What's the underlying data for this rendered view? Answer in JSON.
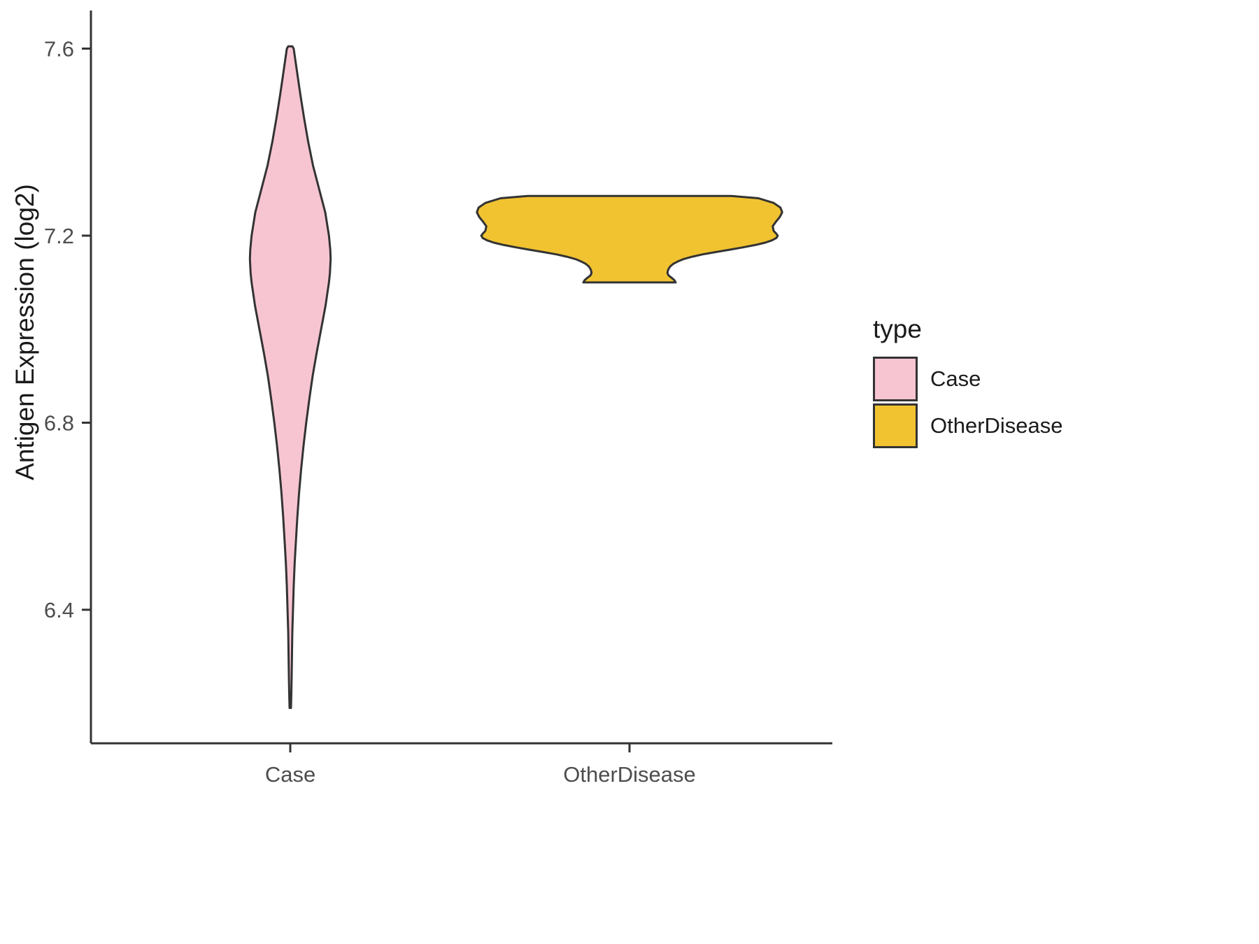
{
  "chart_data": {
    "type": "violin",
    "title": "",
    "xlabel": "",
    "ylabel": "Antigen Expression (log2)",
    "categories": [
      "Case",
      "OtherDisease"
    ],
    "y_ticks": [
      6.4,
      6.8,
      7.2,
      7.6
    ],
    "ylim": [
      6.1,
      7.68
    ],
    "grid": false,
    "stroke_color": "#333333",
    "axis_text_color": "#4d4d4d",
    "legend": {
      "title": "type",
      "position": "right",
      "entries": [
        {
          "label": "Case",
          "color": "#F7C5D2"
        },
        {
          "label": "OtherDisease",
          "color": "#F1C331"
        }
      ]
    },
    "series": [
      {
        "name": "Case",
        "color": "#F7C5D2",
        "y_min": 6.19,
        "y_max": 7.605,
        "profile": [
          [
            7.605,
            0.006
          ],
          [
            7.6,
            0.01
          ],
          [
            7.55,
            0.02
          ],
          [
            7.5,
            0.03
          ],
          [
            7.45,
            0.041
          ],
          [
            7.4,
            0.053
          ],
          [
            7.35,
            0.067
          ],
          [
            7.3,
            0.085
          ],
          [
            7.25,
            0.103
          ],
          [
            7.2,
            0.114
          ],
          [
            7.17,
            0.118
          ],
          [
            7.15,
            0.119
          ],
          [
            7.12,
            0.117
          ],
          [
            7.1,
            0.114
          ],
          [
            7.05,
            0.104
          ],
          [
            7.0,
            0.091
          ],
          [
            6.95,
            0.078
          ],
          [
            6.9,
            0.066
          ],
          [
            6.85,
            0.056
          ],
          [
            6.8,
            0.047
          ],
          [
            6.75,
            0.039
          ],
          [
            6.7,
            0.032
          ],
          [
            6.65,
            0.026
          ],
          [
            6.6,
            0.021
          ],
          [
            6.55,
            0.017
          ],
          [
            6.5,
            0.013
          ],
          [
            6.45,
            0.01
          ],
          [
            6.4,
            0.008
          ],
          [
            6.35,
            0.006
          ],
          [
            6.3,
            0.005
          ],
          [
            6.25,
            0.004
          ],
          [
            6.22,
            0.003
          ],
          [
            6.19,
            0.002
          ]
        ]
      },
      {
        "name": "OtherDisease",
        "color": "#F1C331",
        "y_min": 7.1,
        "y_max": 7.285,
        "profile": [
          [
            7.285,
            0.3
          ],
          [
            7.28,
            0.38
          ],
          [
            7.27,
            0.425
          ],
          [
            7.26,
            0.445
          ],
          [
            7.25,
            0.45
          ],
          [
            7.24,
            0.443
          ],
          [
            7.23,
            0.432
          ],
          [
            7.22,
            0.422
          ],
          [
            7.21,
            0.425
          ],
          [
            7.205,
            0.432
          ],
          [
            7.2,
            0.437
          ],
          [
            7.195,
            0.433
          ],
          [
            7.19,
            0.42
          ],
          [
            7.185,
            0.4
          ],
          [
            7.18,
            0.37
          ],
          [
            7.175,
            0.335
          ],
          [
            7.17,
            0.295
          ],
          [
            7.165,
            0.255
          ],
          [
            7.16,
            0.215
          ],
          [
            7.155,
            0.185
          ],
          [
            7.15,
            0.16
          ],
          [
            7.145,
            0.143
          ],
          [
            7.14,
            0.13
          ],
          [
            7.135,
            0.121
          ],
          [
            7.13,
            0.116
          ],
          [
            7.125,
            0.113
          ],
          [
            7.12,
            0.112
          ],
          [
            7.115,
            0.115
          ],
          [
            7.11,
            0.124
          ],
          [
            7.105,
            0.132
          ],
          [
            7.1,
            0.136
          ]
        ]
      }
    ]
  }
}
